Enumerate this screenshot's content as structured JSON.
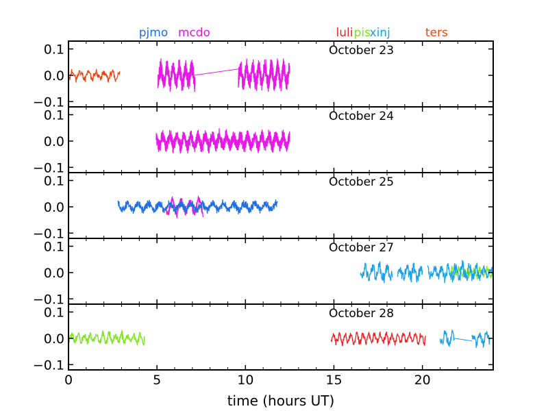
{
  "chart_data": {
    "type": "line",
    "xlabel": "time (hours UT)",
    "xlim": [
      0,
      24
    ],
    "xticks": [
      0,
      5,
      10,
      15,
      20
    ],
    "ylim": [
      -0.12,
      0.13
    ],
    "yticks": [
      0.1,
      0.0,
      -0.1
    ],
    "ytick_labels": [
      "0.1",
      "0.0",
      "−0.1"
    ],
    "grid": false,
    "sites": [
      {
        "name": "pjmo",
        "color": "#1f6fe0",
        "x": 4.8
      },
      {
        "name": "mcdo",
        "color": "#e619e6",
        "x": 7.1
      },
      {
        "name": "luli",
        "color": "#ee2222",
        "x": 15.6
      },
      {
        "name": "pis",
        "color": "#7ce619",
        "x": 16.6
      },
      {
        "name": "xinj",
        "color": "#189fe6",
        "x": 17.6
      },
      {
        "name": "ters",
        "color": "#ee4411",
        "x": 20.8
      }
    ],
    "panels": [
      {
        "label": "October 23",
        "series": [
          {
            "site": "ters",
            "segments": [
              {
                "start": 0.05,
                "end": 2.9,
                "noise": 0.018,
                "wave": 0.012,
                "period": 0.45,
                "step": 0.025,
                "seed": 11
              }
            ]
          },
          {
            "site": "mcdo",
            "segments": [
              {
                "start": 5.05,
                "end": 7.15,
                "noise": 0.04,
                "wave": 0.03,
                "period": 0.35,
                "step": 0.004,
                "seed": 21
              },
              {
                "start": 9.6,
                "end": 12.5,
                "noise": 0.04,
                "wave": 0.03,
                "period": 0.35,
                "step": 0.004,
                "seed": 22
              }
            ]
          }
        ],
        "connectors": [
          {
            "site": "mcdo",
            "x": [
              7.1,
              9.7
            ],
            "y": [
              0.0,
              0.025
            ]
          }
        ]
      },
      {
        "label": "October 24",
        "series": [
          {
            "site": "mcdo",
            "segments": [
              {
                "start": 4.95,
                "end": 12.5,
                "noise": 0.03,
                "wave": 0.02,
                "period": 0.4,
                "step": 0.004,
                "seed": 31
              }
            ]
          }
        ],
        "connectors": []
      },
      {
        "label": "October 25",
        "series": [
          {
            "site": "mcdo",
            "segments": [
              {
                "start": 5.5,
                "end": 7.6,
                "noise": 0.022,
                "wave": 0.025,
                "period": 0.5,
                "step": 0.01,
                "seed": 41
              }
            ]
          },
          {
            "site": "pjmo",
            "segments": [
              {
                "start": 2.8,
                "end": 11.8,
                "noise": 0.018,
                "wave": 0.012,
                "period": 0.6,
                "step": 0.01,
                "seed": 42
              }
            ]
          }
        ],
        "connectors": []
      },
      {
        "label": "October 27",
        "series": [
          {
            "site": "pis",
            "segments": [
              {
                "start": 21.6,
                "end": 24.0,
                "noise": 0.02,
                "wave": 0.01,
                "period": 0.4,
                "step": 0.02,
                "seed": 51
              }
            ]
          },
          {
            "site": "xinj",
            "segments": [
              {
                "start": 16.5,
                "end": 18.3,
                "noise": 0.03,
                "wave": 0.02,
                "period": 0.4,
                "step": 0.02,
                "seed": 52
              },
              {
                "start": 18.6,
                "end": 20.0,
                "noise": 0.03,
                "wave": 0.02,
                "period": 0.4,
                "step": 0.02,
                "seed": 53
              },
              {
                "start": 20.3,
                "end": 24.0,
                "noise": 0.03,
                "wave": 0.02,
                "period": 0.4,
                "step": 0.02,
                "seed": 54
              }
            ]
          }
        ],
        "connectors": []
      },
      {
        "label": "October 28",
        "series": [
          {
            "site": "pis",
            "segments": [
              {
                "start": 0.05,
                "end": 4.3,
                "noise": 0.018,
                "wave": 0.015,
                "period": 0.35,
                "step": 0.02,
                "seed": 61
              }
            ]
          },
          {
            "site": "luli",
            "segments": [
              {
                "start": 14.85,
                "end": 20.2,
                "noise": 0.015,
                "wave": 0.015,
                "period": 0.33,
                "step": 0.02,
                "seed": 62
              }
            ]
          },
          {
            "site": "xinj",
            "segments": [
              {
                "start": 21.0,
                "end": 21.8,
                "noise": 0.025,
                "wave": 0.015,
                "period": 0.4,
                "step": 0.02,
                "seed": 63
              },
              {
                "start": 22.8,
                "end": 23.8,
                "noise": 0.025,
                "wave": 0.015,
                "period": 0.4,
                "step": 0.02,
                "seed": 64
              }
            ]
          }
        ],
        "connectors": [
          {
            "site": "xinj",
            "x": [
              21.8,
              22.8
            ],
            "y": [
              0.0,
              -0.01
            ]
          }
        ]
      }
    ]
  }
}
